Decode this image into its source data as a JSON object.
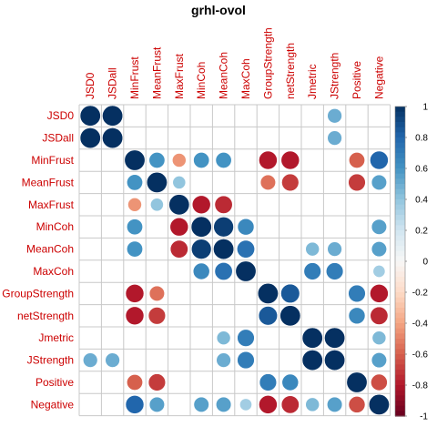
{
  "chart_data": {
    "type": "heatmap",
    "title": "grhl-ovol",
    "variables": [
      "JSD0",
      "JSDall",
      "MinFrust",
      "MeanFrust",
      "MaxFrust",
      "MinCoh",
      "MeanCoh",
      "MaxCoh",
      "GroupStrength",
      "netStrength",
      "Jmetric",
      "JStrength",
      "Positive",
      "Negative"
    ],
    "matrix": [
      [
        1,
        1,
        null,
        null,
        null,
        null,
        null,
        null,
        null,
        null,
        null,
        0.5,
        null,
        null
      ],
      [
        1,
        1,
        null,
        null,
        null,
        null,
        null,
        null,
        null,
        null,
        null,
        0.5,
        null,
        null
      ],
      [
        null,
        null,
        1,
        0.6,
        -0.45,
        0.6,
        0.6,
        null,
        -0.8,
        -0.8,
        null,
        null,
        -0.6,
        0.8
      ],
      [
        null,
        null,
        0.6,
        1,
        0.4,
        null,
        null,
        null,
        -0.55,
        -0.7,
        null,
        null,
        -0.7,
        0.55
      ],
      [
        null,
        null,
        -0.45,
        0.4,
        1,
        -0.8,
        -0.75,
        null,
        null,
        null,
        null,
        null,
        null,
        null
      ],
      [
        null,
        null,
        0.6,
        null,
        -0.8,
        1,
        0.95,
        0.65,
        null,
        null,
        null,
        null,
        null,
        0.55
      ],
      [
        null,
        null,
        0.6,
        null,
        -0.75,
        0.95,
        1,
        0.75,
        null,
        null,
        0.45,
        0.5,
        null,
        0.55
      ],
      [
        null,
        null,
        null,
        null,
        null,
        0.65,
        0.75,
        1,
        null,
        null,
        0.7,
        0.7,
        null,
        0.35
      ],
      [
        null,
        null,
        -0.8,
        -0.55,
        null,
        null,
        null,
        null,
        1,
        0.85,
        null,
        null,
        0.7,
        -0.8
      ],
      [
        null,
        null,
        -0.8,
        -0.7,
        null,
        null,
        null,
        null,
        0.85,
        1,
        null,
        null,
        0.65,
        -0.75
      ],
      [
        null,
        null,
        null,
        null,
        null,
        null,
        0.45,
        0.7,
        null,
        null,
        1,
        1,
        null,
        0.45
      ],
      [
        0.5,
        0.5,
        null,
        null,
        null,
        null,
        0.5,
        0.7,
        null,
        null,
        1,
        1,
        null,
        0.55
      ],
      [
        null,
        null,
        -0.6,
        -0.7,
        null,
        null,
        null,
        null,
        0.7,
        0.65,
        null,
        null,
        1,
        -0.65
      ],
      [
        null,
        null,
        0.8,
        0.55,
        null,
        0.55,
        0.55,
        0.35,
        -0.8,
        -0.75,
        0.45,
        0.55,
        -0.65,
        1
      ]
    ],
    "colorbar": {
      "range": [
        -1,
        1
      ],
      "ticks": [
        "1",
        "0.8",
        "0.6",
        "0.4",
        "0.2",
        "0",
        "-0.2",
        "-0.4",
        "-0.6",
        "-0.8",
        "-1"
      ],
      "colors": {
        "negative": "#67001f",
        "neutral": "#f7f7f7",
        "positive": "#053061"
      }
    },
    "label_color": "#cc0000",
    "grid": true
  }
}
